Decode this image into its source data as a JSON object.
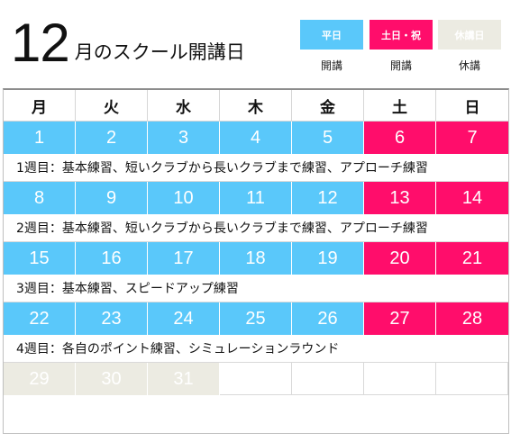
{
  "title": {
    "month": "12",
    "rest": "月のスクール開講日"
  },
  "legend": [
    {
      "label": "平日",
      "caption": "開講",
      "color": "#5ac8fa"
    },
    {
      "label": "土日・祝",
      "caption": "開講",
      "color": "#ff0d6b"
    },
    {
      "label": "休講日",
      "caption": "休講",
      "color": "#ecebe2"
    }
  ],
  "calendar": {
    "weekdays": [
      "月",
      "火",
      "水",
      "木",
      "金",
      "土",
      "日"
    ],
    "weeks": [
      {
        "days": [
          "1",
          "2",
          "3",
          "4",
          "5",
          "6",
          "7"
        ],
        "note": "1週目：基本練習、短いクラブから長いクラブまで練習、アプローチ練習"
      },
      {
        "days": [
          "8",
          "9",
          "10",
          "11",
          "12",
          "13",
          "14"
        ],
        "note": "2週目：基本練習、短いクラブから長いクラブまで練習、アプローチ練習"
      },
      {
        "days": [
          "15",
          "16",
          "17",
          "18",
          "19",
          "20",
          "21"
        ],
        "note": "3週目：基本練習、スピードアップ練習"
      },
      {
        "days": [
          "22",
          "23",
          "24",
          "25",
          "26",
          "27",
          "28"
        ],
        "note": "4週目：各自のポイント練習、シミュレーションラウンド"
      },
      {
        "days": [
          "29",
          "30",
          "31",
          "",
          "",
          "",
          ""
        ],
        "note": ""
      }
    ]
  }
}
